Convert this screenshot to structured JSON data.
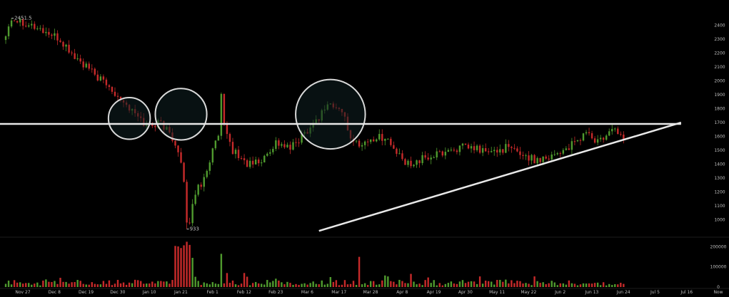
{
  "chart_data": {
    "type": "candlestick",
    "price_axis": {
      "range": [
        890,
        2480
      ],
      "ticks": [
        1000,
        1100,
        1200,
        1300,
        1400,
        1500,
        1600,
        1700,
        1800,
        1900,
        2000,
        2100,
        2200,
        2300,
        2400
      ],
      "tick_labels": [
        "1000",
        "1100",
        "1200",
        "1300",
        "1400",
        "1500",
        "1600",
        "1700",
        "1800",
        "1900",
        "2000",
        "2100",
        "2200",
        "2300",
        "2400"
      ]
    },
    "volume_axis": {
      "range": [
        0,
        230000
      ],
      "ticks": [
        0,
        100000,
        200000
      ],
      "tick_labels": [
        "0",
        "100000",
        "200000"
      ]
    },
    "time_axis": {
      "labels": [
        "Nov 27",
        "Dec 8",
        "Dec 19",
        "Dec 30",
        "Jan 10",
        "Jan 21",
        "Feb 1",
        "Feb 12",
        "Feb 23",
        "Mar 6",
        "Mar 17",
        "Mar 28",
        "Apr 8",
        "Apr 19",
        "Apr 30",
        "May 11",
        "May 22",
        "Jun 2",
        "Jun 13",
        "Jun 24",
        "Jul 5",
        "Jul 16",
        "Now"
      ],
      "label_index": [
        0,
        11,
        22,
        33,
        44,
        55,
        66,
        77,
        88,
        99,
        110,
        121,
        132,
        143,
        154,
        165,
        176,
        187,
        198,
        209,
        220,
        231,
        242
      ],
      "count": 243
    },
    "data_region_candles": 216,
    "price_keypoints": [
      [
        0,
        2300
      ],
      [
        3,
        2451.5
      ],
      [
        8,
        2420
      ],
      [
        15,
        2350
      ],
      [
        20,
        2290
      ],
      [
        25,
        2170
      ],
      [
        30,
        2080
      ],
      [
        35,
        1990
      ],
      [
        40,
        1900
      ],
      [
        45,
        1780
      ],
      [
        50,
        1680
      ],
      [
        55,
        1700
      ],
      [
        58,
        1620
      ],
      [
        60,
        1560
      ],
      [
        62,
        1400
      ],
      [
        63,
        1250
      ],
      [
        64,
        933
      ],
      [
        65,
        1000
      ],
      [
        67,
        1200
      ],
      [
        70,
        1300
      ],
      [
        73,
        1500
      ],
      [
        75,
        1600
      ],
      [
        76,
        1880
      ],
      [
        77,
        1660
      ],
      [
        80,
        1500
      ],
      [
        85,
        1400
      ],
      [
        90,
        1420
      ],
      [
        95,
        1560
      ],
      [
        100,
        1510
      ],
      [
        103,
        1580
      ],
      [
        106,
        1650
      ],
      [
        110,
        1740
      ],
      [
        113,
        1840
      ],
      [
        116,
        1800
      ],
      [
        119,
        1760
      ],
      [
        121,
        1560
      ],
      [
        125,
        1550
      ],
      [
        130,
        1590
      ],
      [
        133,
        1600
      ],
      [
        137,
        1480
      ],
      [
        140,
        1400
      ],
      [
        145,
        1430
      ],
      [
        150,
        1460
      ],
      [
        155,
        1500
      ],
      [
        160,
        1520
      ],
      [
        165,
        1510
      ],
      [
        170,
        1480
      ],
      [
        175,
        1520
      ],
      [
        180,
        1480
      ],
      [
        185,
        1430
      ],
      [
        190,
        1460
      ],
      [
        195,
        1500
      ],
      [
        200,
        1560
      ],
      [
        203,
        1640
      ],
      [
        206,
        1560
      ],
      [
        210,
        1590
      ],
      [
        213,
        1670
      ],
      [
        216,
        1570
      ]
    ],
    "annotations": {
      "high_label": "2451.5",
      "low_label": "933",
      "high_value": 2451.5,
      "low_value": 933,
      "high_index": 3,
      "low_index": 64
    },
    "overlays": {
      "resistance_line": {
        "from": [
          -1,
          1690
        ],
        "to": [
          236,
          1690
        ]
      },
      "support_line": {
        "from": [
          110,
          920
        ],
        "to": [
          236,
          1700
        ]
      },
      "highlight_circles": [
        {
          "center": [
            44,
            1730
          ],
          "radius_price": 150
        },
        {
          "center": [
            62,
            1760
          ],
          "radius_price": 185
        },
        {
          "center": [
            114,
            1760
          ],
          "radius_price": 250
        }
      ]
    },
    "colors": {
      "background": "#000000",
      "up": "#4f9a2e",
      "down": "#c62a2a",
      "axis_text": "#bfbfbf",
      "overlay_line": "#e8e8e8",
      "circle_stroke": "#d9d9d9",
      "circle_fill": "#0f1f20"
    }
  }
}
